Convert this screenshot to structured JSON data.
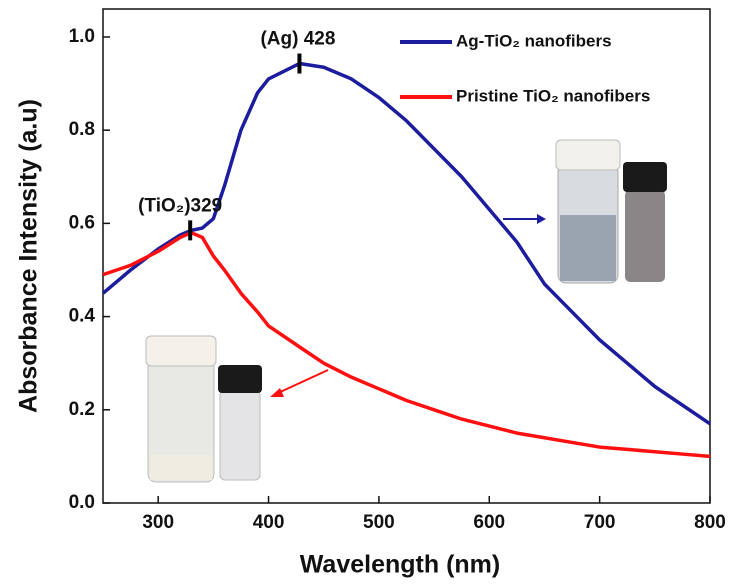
{
  "chart_data": {
    "type": "line",
    "xlabel": "Wavelength (nm)",
    "ylabel": "Absorbance Intensity (a.u)",
    "x": [
      250,
      275,
      300,
      320,
      330,
      340,
      350,
      360,
      375,
      390,
      400,
      428,
      450,
      475,
      500,
      525,
      550,
      575,
      600,
      625,
      650,
      675,
      700,
      725,
      750,
      775,
      800
    ],
    "series": [
      {
        "name": "Ag-TiO₂ nanofibers",
        "color": "#1c1c9e",
        "values": [
          0.45,
          0.5,
          0.545,
          0.575,
          0.585,
          0.59,
          0.61,
          0.68,
          0.8,
          0.88,
          0.91,
          0.943,
          0.935,
          0.91,
          0.87,
          0.82,
          0.76,
          0.7,
          0.63,
          0.56,
          0.47,
          0.41,
          0.35,
          0.3,
          0.25,
          0.21,
          0.17
        ]
      },
      {
        "name": "Pristine TiO₂ nanofibers",
        "color": "#ff1010",
        "values": [
          0.49,
          0.51,
          0.54,
          0.57,
          0.58,
          0.57,
          0.53,
          0.5,
          0.45,
          0.41,
          0.38,
          0.335,
          0.3,
          0.27,
          0.245,
          0.22,
          0.2,
          0.18,
          0.165,
          0.15,
          0.14,
          0.13,
          0.12,
          0.115,
          0.11,
          0.105,
          0.1
        ]
      }
    ],
    "annotations": [
      {
        "text": "(Ag) 428",
        "x": 428,
        "y": 0.943
      },
      {
        "text": "(TiO₂)329",
        "x": 329,
        "y": 0.585
      }
    ],
    "xlim": [
      250,
      800
    ],
    "xticks": [
      300,
      400,
      500,
      600,
      700,
      800
    ],
    "ylim": [
      0,
      1.06
    ],
    "yticks": [
      {
        "value": 0,
        "label": "0.0"
      },
      0.2,
      0.4,
      0.6,
      0.8,
      {
        "value": 1,
        "label": "1.0"
      }
    ],
    "legend": "upper right"
  }
}
